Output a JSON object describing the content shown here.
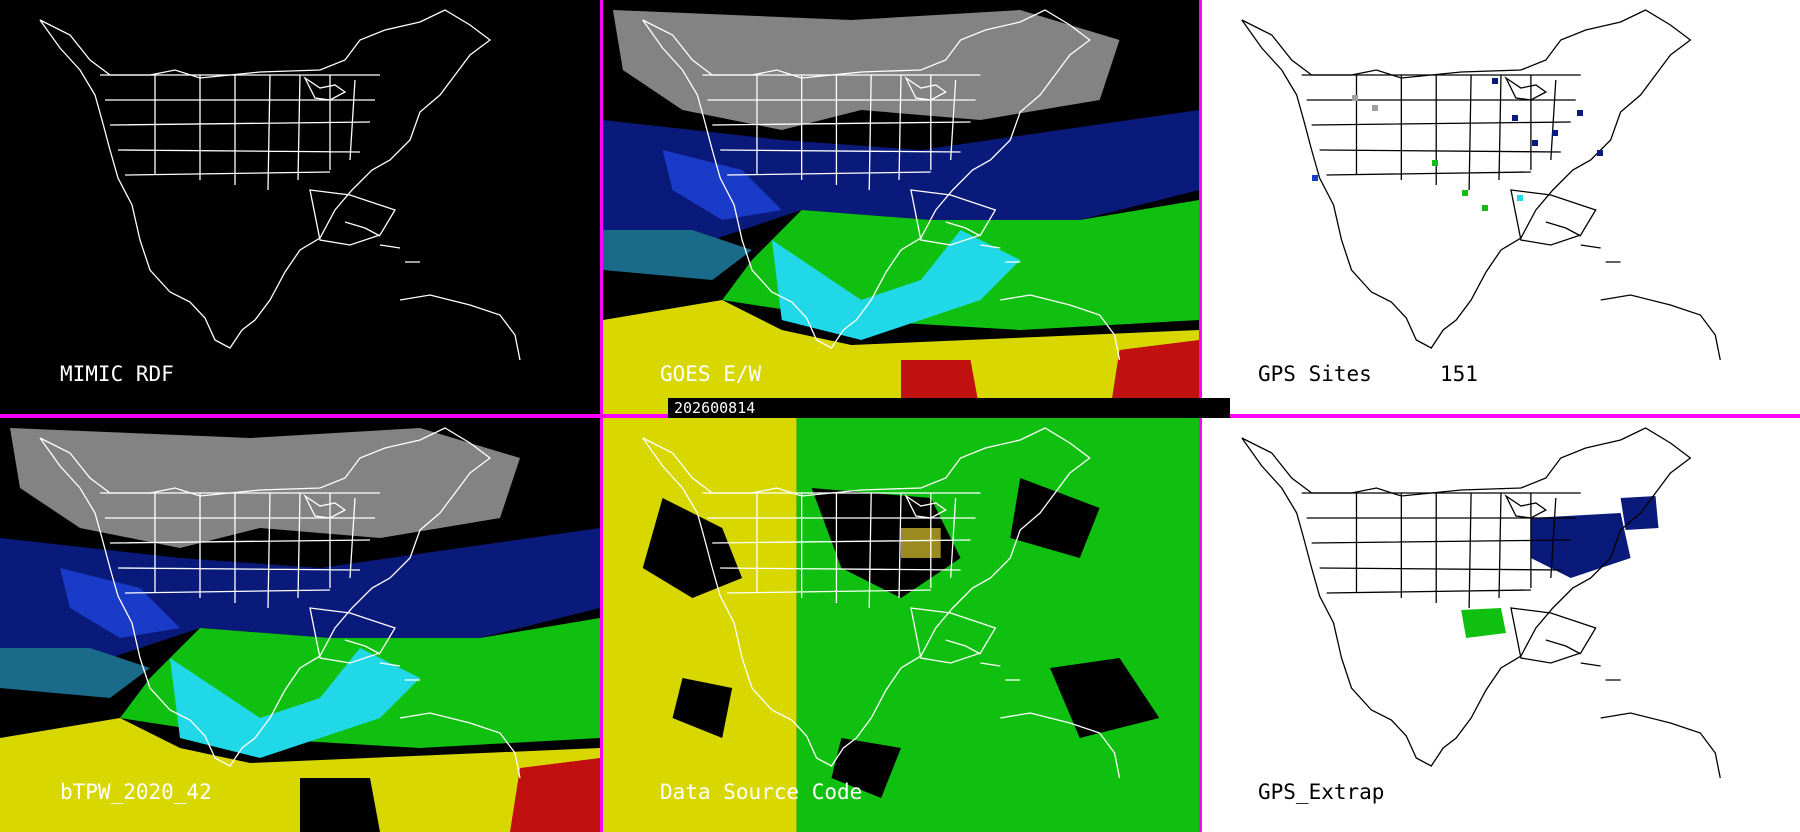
{
  "panels": {
    "p1": {
      "label": "MIMIC RDF"
    },
    "p2": {
      "label": "GOES E/W"
    },
    "p3": {
      "label": "GPS Sites",
      "count": "151"
    },
    "p4": {
      "label": "bTPW_2020_42"
    },
    "p5": {
      "label": "Data Source Code"
    },
    "p6": {
      "label": "GPS_Extrap"
    }
  },
  "date_bar": {
    "text": "202600814"
  },
  "colors": {
    "separator": "#ff00ff",
    "map_dark_lines": "#ffffff",
    "map_light_lines": "#000000",
    "blue_navy": "#0a1a7a",
    "blue": "#1a3ac8",
    "cyan": "#20d8e8",
    "green": "#10c010",
    "yellow": "#d8d800",
    "red": "#c01010",
    "gray": "#a0a0a0"
  }
}
